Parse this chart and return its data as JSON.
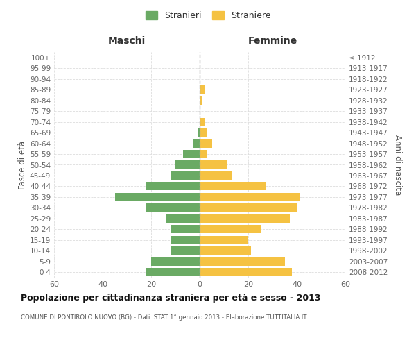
{
  "age_groups": [
    "0-4",
    "5-9",
    "10-14",
    "15-19",
    "20-24",
    "25-29",
    "30-34",
    "35-39",
    "40-44",
    "45-49",
    "50-54",
    "55-59",
    "60-64",
    "65-69",
    "70-74",
    "75-79",
    "80-84",
    "85-89",
    "90-94",
    "95-99",
    "100+"
  ],
  "birth_years": [
    "2008-2012",
    "2003-2007",
    "1998-2002",
    "1993-1997",
    "1988-1992",
    "1983-1987",
    "1978-1982",
    "1973-1977",
    "1968-1972",
    "1963-1967",
    "1958-1962",
    "1953-1957",
    "1948-1952",
    "1943-1947",
    "1938-1942",
    "1933-1937",
    "1928-1932",
    "1923-1927",
    "1918-1922",
    "1913-1917",
    "≤ 1912"
  ],
  "maschi": [
    22,
    20,
    12,
    12,
    12,
    14,
    22,
    35,
    22,
    12,
    10,
    7,
    3,
    1,
    0,
    0,
    0,
    0,
    0,
    0,
    0
  ],
  "femmine": [
    38,
    35,
    21,
    20,
    25,
    37,
    40,
    41,
    27,
    13,
    11,
    3,
    5,
    3,
    2,
    0,
    1,
    2,
    0,
    0,
    0
  ],
  "maschi_color": "#6aaa64",
  "femmine_color": "#f5c242",
  "title": "Popolazione per cittadinanza straniera per età e sesso - 2013",
  "subtitle": "COMUNE DI PONTIROLO NUOVO (BG) - Dati ISTAT 1° gennaio 2013 - Elaborazione TUTTITALIA.IT",
  "ylabel_left": "Fasce di età",
  "ylabel_right": "Anni di nascita",
  "header_maschi": "Maschi",
  "header_femmine": "Femmine",
  "legend_maschi": "Stranieri",
  "legend_femmine": "Straniere",
  "xlim": 60,
  "background_color": "#ffffff",
  "grid_color": "#dddddd"
}
